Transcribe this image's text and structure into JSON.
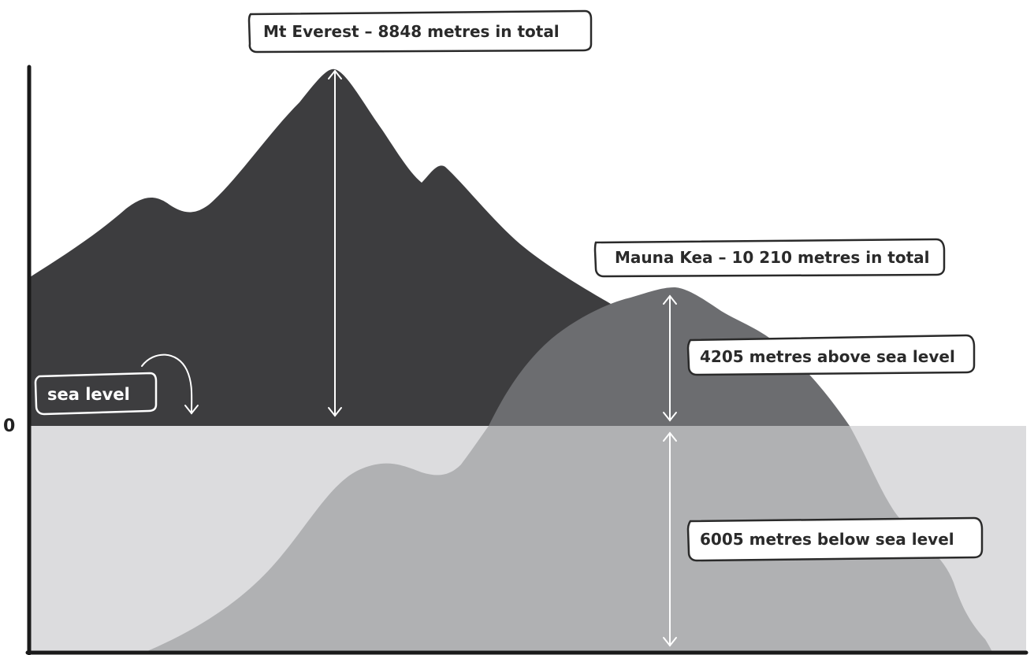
{
  "diagram": {
    "everest_label": "Mt Everest – 8848 metres in total",
    "mauna_kea_label": "Mauna Kea – 10 210 metres in total",
    "above_label": "4205 metres above sea level",
    "below_label": "6005 metres below sea level",
    "sea_level_label": "sea level",
    "zero_label": "0"
  },
  "colors": {
    "everest": "#3d3d3f",
    "mauna_kea_above": "#6c6d70",
    "mauna_kea_below": "#b0b1b3",
    "sea": "#dcdcde",
    "axis": "#1a1a1a",
    "arrow": "#ffffff",
    "label_box": "#ffffff",
    "label_border": "#2a2a2a",
    "sea_level_box": "#3d3d3f"
  }
}
